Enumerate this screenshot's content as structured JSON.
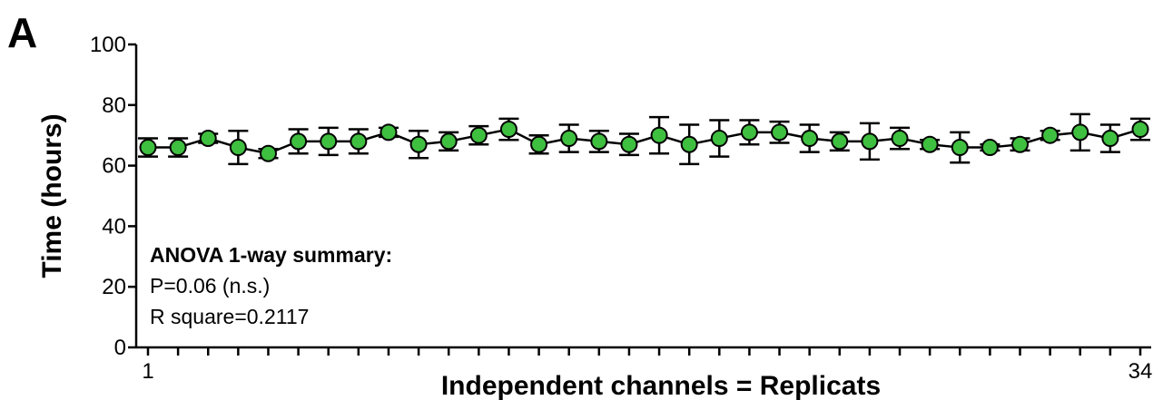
{
  "panel_label": "A",
  "annotation": {
    "title": "ANOVA 1-way summary:",
    "line1": "P=0.06 (n.s.)",
    "line2": "R square=0.2117"
  },
  "colors": {
    "marker_fill": "#3fbf3f",
    "marker_stroke": "#000000",
    "line": "#000000"
  },
  "chart_data": {
    "type": "line",
    "title": "",
    "xlabel": "Independent channels = Replicats",
    "ylabel": "Time (hours)",
    "xlim": [
      1,
      34
    ],
    "ylim": [
      0,
      100
    ],
    "yticks": [
      0,
      20,
      40,
      60,
      80,
      100
    ],
    "xtick_labels": [
      {
        "x": 1,
        "label": "1"
      },
      {
        "x": 34,
        "label": "34"
      }
    ],
    "grid": false,
    "x": [
      1,
      2,
      3,
      4,
      5,
      6,
      7,
      8,
      9,
      10,
      11,
      12,
      13,
      14,
      15,
      16,
      17,
      18,
      19,
      20,
      21,
      22,
      23,
      24,
      25,
      26,
      27,
      28,
      29,
      30,
      31,
      32,
      33,
      34
    ],
    "values": [
      66,
      66,
      69,
      66,
      64,
      68,
      68,
      68,
      71,
      67,
      68,
      70,
      72,
      67,
      69,
      68,
      67,
      70,
      67,
      69,
      71,
      71,
      69,
      68,
      68,
      69,
      67,
      66,
      66,
      67,
      70,
      71,
      69,
      72
    ],
    "error": [
      3,
      3,
      1.5,
      5.5,
      1.5,
      4,
      4.5,
      4,
      1.5,
      4.5,
      3,
      3,
      3.5,
      3,
      4.5,
      3.5,
      3.5,
      6,
      6.5,
      6,
      4,
      3.5,
      4.5,
      3,
      6,
      3.5,
      1.5,
      5,
      1,
      2,
      1.5,
      6,
      4.5,
      3.5
    ]
  }
}
